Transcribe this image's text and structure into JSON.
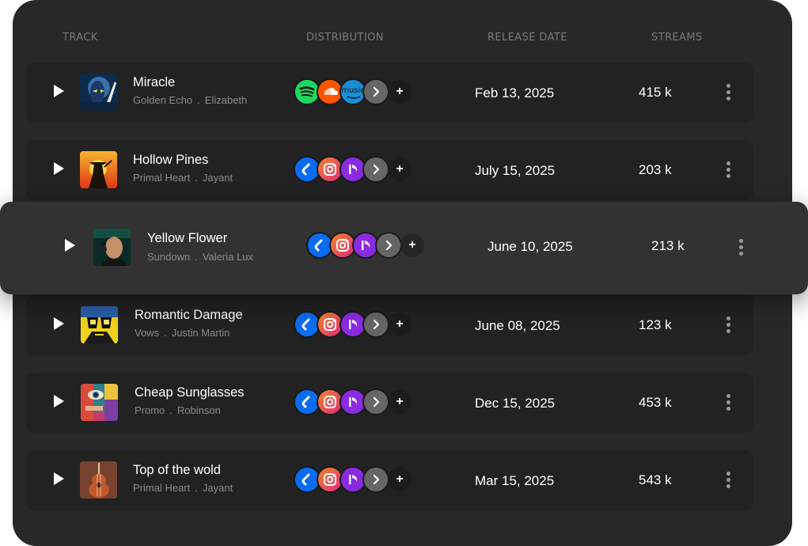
{
  "header": {
    "track": "TRACK",
    "distribution": "DISTRIBUTION",
    "release_date": "RELEASE DATE",
    "streams": "STREAMS"
  },
  "distribution_icons": {
    "spotify": "spotify-icon",
    "soundcloud": "soundcloud-icon",
    "amazon_music": "amazon-music-icon",
    "amazon_music_text": "music",
    "shazam": "shazam-icon",
    "instagram": "instagram-icon",
    "deezer_like": "music-note-icon",
    "more": "chevron-right-icon",
    "add": "+"
  },
  "colors": {
    "panel": "#282828",
    "row": "#222222",
    "row_highlight": "#323232",
    "spotify": "#1ed760",
    "soundcloud": "#ff5500",
    "amazon": "#1a8fd6",
    "shazam": "#0a6cf2",
    "instagram_a": "#f58529",
    "instagram_b": "#dd2a7b",
    "music_purple": "#8a2be2"
  },
  "tracks": [
    {
      "title": "Miracle",
      "album": "Golden Echo",
      "artist": "Elizabeth",
      "date": "Feb 13, 2025",
      "streams": "415 k",
      "platforms": "set-a"
    },
    {
      "title": "Hollow Pines",
      "album": "Primal Heart",
      "artist": "Jayant",
      "date": "July 15, 2025",
      "streams": "203 k",
      "platforms": "set-b"
    },
    {
      "title": "Yellow Flower",
      "album": "Sundown",
      "artist": "Valeria Lux",
      "date": "June 10, 2025",
      "streams": "213 k",
      "platforms": "set-b"
    },
    {
      "title": "Romantic Damage",
      "album": "Vows",
      "artist": "Justin Martin",
      "date": "June 08, 2025",
      "streams": "123 k",
      "platforms": "set-b"
    },
    {
      "title": "Cheap Sunglasses",
      "album": "Promo",
      "artist": "Robinson",
      "date": "Dec 15, 2025",
      "streams": "453 k",
      "platforms": "set-b"
    },
    {
      "title": "Top of the wold",
      "album": "Primal Heart",
      "artist": "Jayant",
      "date": "Mar 15, 2025",
      "streams": "543 k",
      "platforms": "set-b"
    }
  ],
  "separator": "."
}
